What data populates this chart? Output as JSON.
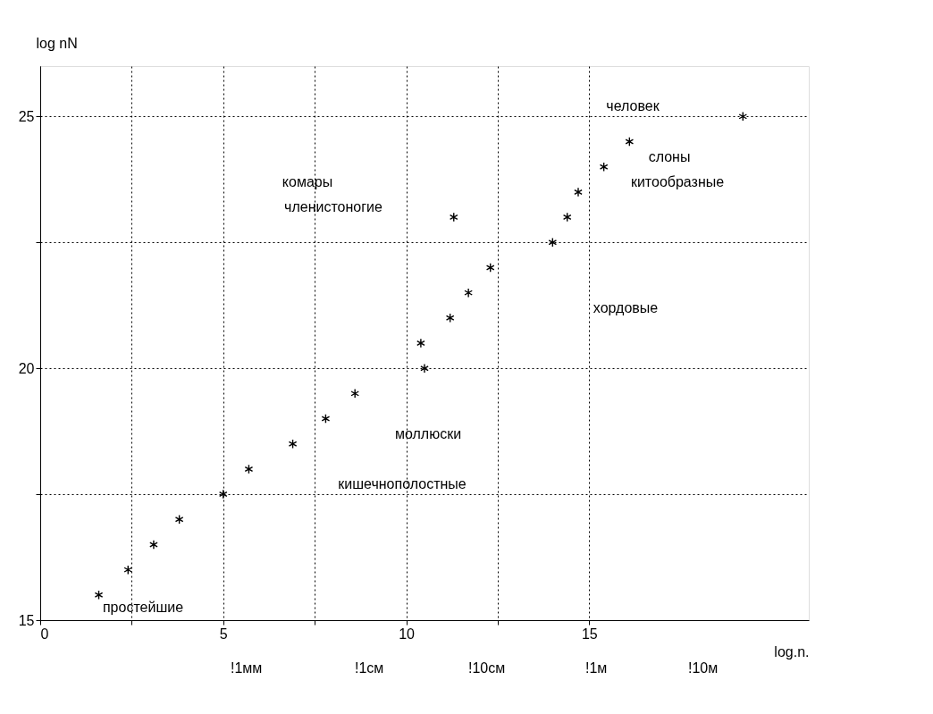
{
  "chart_data": {
    "type": "scatter",
    "xlabel": "log.n.",
    "ylabel": "log nN",
    "x": [
      1.6,
      2.4,
      3.1,
      3.8,
      5.0,
      5.7,
      6.9,
      7.8,
      8.6,
      10.5,
      10.4,
      11.2,
      11.7,
      12.3,
      14.0,
      14.4,
      14.7,
      15.4,
      16.1,
      19.2,
      11.3
    ],
    "values": [
      15.5,
      16,
      16.5,
      17,
      17.5,
      18,
      18.5,
      19,
      19.5,
      20,
      20.5,
      21,
      21.5,
      22,
      22.5,
      23,
      23.5,
      24,
      24.5,
      25,
      23
    ],
    "color": "#000000",
    "marker": "cross",
    "xlim": [
      0,
      21
    ],
    "ylim": [
      15,
      26
    ],
    "xticks": [
      0,
      {
        "value": 2.5,
        "label": null
      },
      5,
      {
        "value": 7.5,
        "label": null
      },
      10,
      {
        "value": 12.5,
        "label": null
      },
      15
    ],
    "yticks": [
      15,
      {
        "value": 17.5,
        "label": null
      },
      20,
      {
        "value": 22.5,
        "label": null
      },
      25
    ],
    "grid": true,
    "annotations": [
      "человек",
      "слоны",
      "китообразные",
      "комары",
      "членистоногие",
      "хордовые",
      "моллюски",
      "кишечнополостные",
      "простейшие",
      "!1мм",
      "!1см",
      "!10см",
      "!1м",
      "!10м"
    ]
  }
}
